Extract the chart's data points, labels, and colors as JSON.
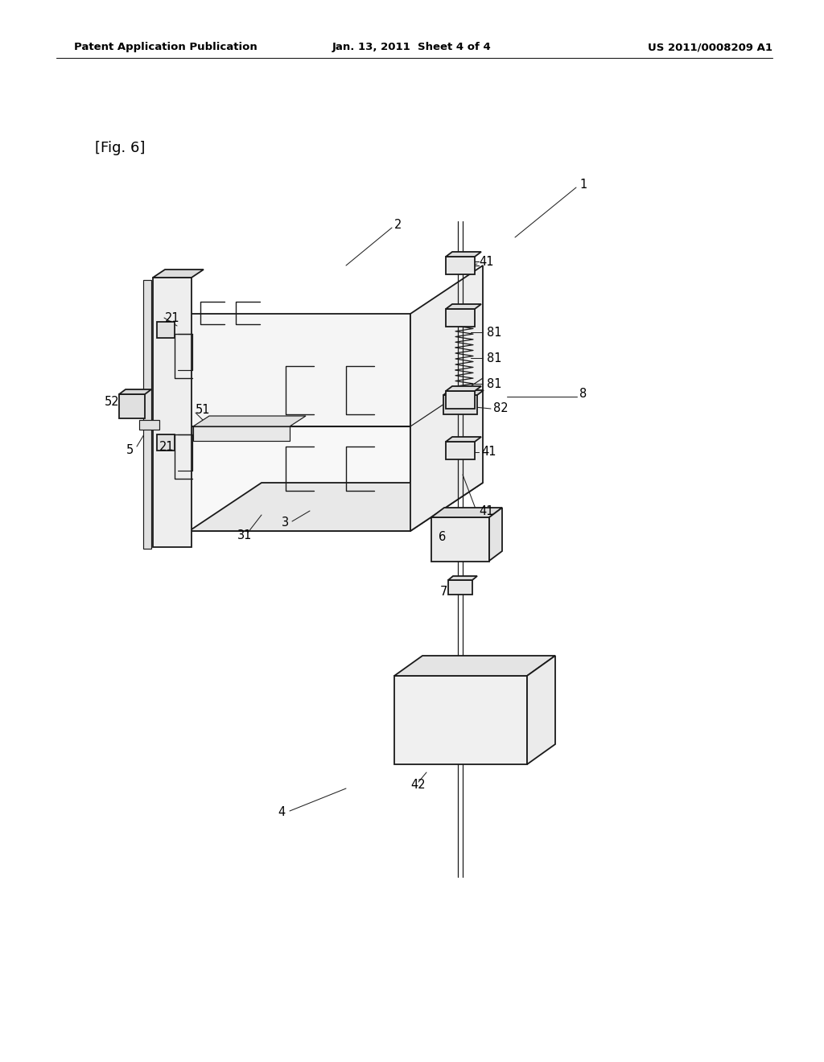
{
  "background_color": "#ffffff",
  "header_left": "Patent Application Publication",
  "header_center": "Jan. 13, 2011  Sheet 4 of 4",
  "header_right": "US 2011/0008209 A1",
  "fig_label": "[Fig. 6]",
  "line_color": "#1a1a1a",
  "lw_main": 1.3,
  "lw_thin": 0.85
}
